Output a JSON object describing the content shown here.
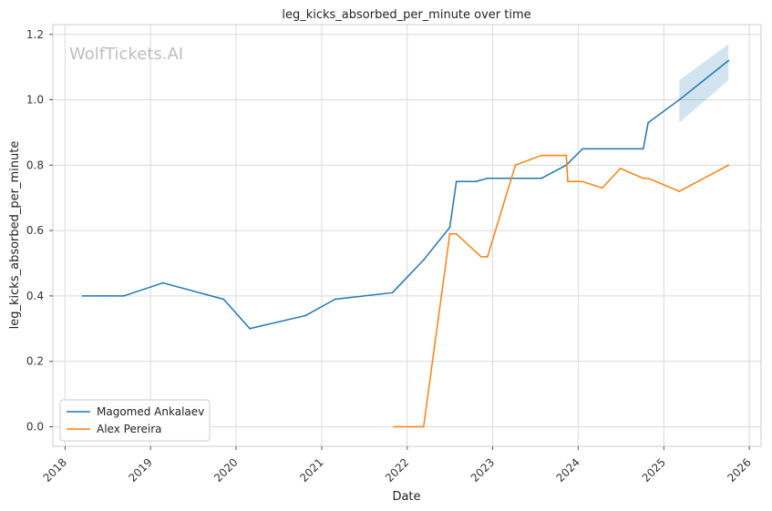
{
  "chart_data": {
    "type": "line",
    "title": "leg_kicks_absorbed_per_minute over time",
    "xlabel": "Date",
    "ylabel": "leg_kicks_absorbed_per_minute",
    "watermark": "WolfTickets.AI",
    "xlim": [
      "2017-11-10",
      "2026-02-20"
    ],
    "ylim": [
      -0.06,
      1.23
    ],
    "x_ticks": [
      "2018",
      "2019",
      "2020",
      "2021",
      "2022",
      "2023",
      "2024",
      "2025",
      "2026"
    ],
    "y_ticks": [
      "0.0",
      "0.2",
      "0.4",
      "0.6",
      "0.8",
      "1.0",
      "1.2"
    ],
    "grid": true,
    "legend_position": "bottom-left",
    "series": [
      {
        "name": "Magomed Ankalaev",
        "color": "#1f77b4",
        "points": [
          [
            "2018-03-17",
            0.4
          ],
          [
            "2018-09-08",
            0.4
          ],
          [
            "2019-02-23",
            0.44
          ],
          [
            "2019-11-09",
            0.39
          ],
          [
            "2020-02-29",
            0.3
          ],
          [
            "2020-10-24",
            0.34
          ],
          [
            "2021-02-27",
            0.39
          ],
          [
            "2021-10-30",
            0.41
          ],
          [
            "2022-03-12",
            0.51
          ],
          [
            "2022-07-02",
            0.61
          ],
          [
            "2022-07-30",
            0.75
          ],
          [
            "2022-10-22",
            0.75
          ],
          [
            "2022-12-10",
            0.76
          ],
          [
            "2023-07-29",
            0.76
          ],
          [
            "2023-11-11",
            0.8
          ],
          [
            "2024-01-20",
            0.85
          ],
          [
            "2024-10-05",
            0.85
          ],
          [
            "2024-10-26",
            0.93
          ],
          [
            "2025-03-08",
            1.0
          ],
          [
            "2025-10-04",
            1.12
          ]
        ],
        "band": [
          [
            "2025-03-08",
            0.93,
            1.06
          ],
          [
            "2025-10-04",
            1.06,
            1.17
          ]
        ]
      },
      {
        "name": "Alex Pereira",
        "color": "#ff7f0e",
        "points": [
          [
            "2021-11-06",
            0.0
          ],
          [
            "2022-03-12",
            0.0
          ],
          [
            "2022-07-02",
            0.59
          ],
          [
            "2022-07-30",
            0.59
          ],
          [
            "2022-11-12",
            0.52
          ],
          [
            "2022-12-10",
            0.52
          ],
          [
            "2023-04-08",
            0.8
          ],
          [
            "2023-07-29",
            0.83
          ],
          [
            "2023-11-11",
            0.83
          ],
          [
            "2023-11-18",
            0.75
          ],
          [
            "2024-01-20",
            0.75
          ],
          [
            "2024-04-13",
            0.73
          ],
          [
            "2024-06-29",
            0.79
          ],
          [
            "2024-10-05",
            0.76
          ],
          [
            "2024-10-26",
            0.76
          ],
          [
            "2025-03-08",
            0.72
          ],
          [
            "2025-10-04",
            0.8
          ]
        ]
      }
    ]
  }
}
